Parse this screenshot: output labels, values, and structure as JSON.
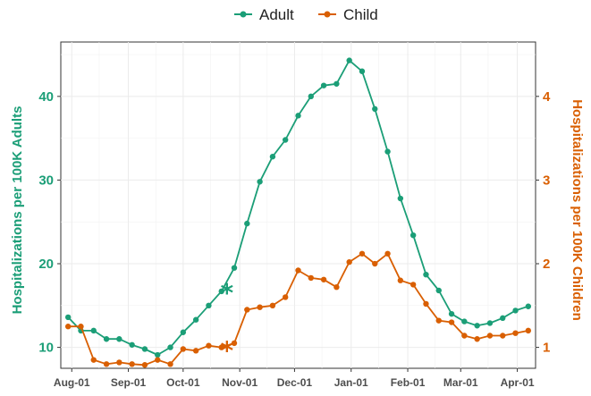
{
  "chart_data": {
    "type": "line",
    "title": "",
    "xlabel": "",
    "colors": {
      "adult": "#1b9e77",
      "child": "#d95f02"
    },
    "x_ticks": [
      {
        "label": "Aug-01",
        "date": "2023-08-01"
      },
      {
        "label": "Sep-01",
        "date": "2023-09-01"
      },
      {
        "label": "Oct-01",
        "date": "2023-10-01"
      },
      {
        "label": "Nov-01",
        "date": "2023-11-01"
      },
      {
        "label": "Dec-01",
        "date": "2023-12-01"
      },
      {
        "label": "Jan-01",
        "date": "2024-01-01"
      },
      {
        "label": "Feb-01",
        "date": "2024-02-01"
      },
      {
        "label": "Mar-01",
        "date": "2024-03-01"
      },
      {
        "label": "Apr-01",
        "date": "2024-04-01"
      }
    ],
    "y_left": {
      "label": "Hospitalizations per 100K Adults",
      "ylim": [
        7.5,
        46.5
      ],
      "ticks": [
        10,
        20,
        30,
        40
      ]
    },
    "y_right": {
      "label": "Hospitalizations per 100K Children",
      "ylim": [
        0.75,
        4.65
      ],
      "ticks": [
        1,
        2,
        3,
        4
      ]
    },
    "legend": {
      "position": "top",
      "entries": [
        "Adult",
        "Child"
      ]
    },
    "grid": true,
    "dates": [
      "2023-07-30",
      "2023-08-06",
      "2023-08-13",
      "2023-08-20",
      "2023-08-27",
      "2023-09-03",
      "2023-09-10",
      "2023-09-17",
      "2023-09-24",
      "2023-10-01",
      "2023-10-08",
      "2023-10-15",
      "2023-10-22",
      "2023-10-29",
      "2023-11-05",
      "2023-11-12",
      "2023-11-19",
      "2023-11-26",
      "2023-12-03",
      "2023-12-10",
      "2023-12-17",
      "2023-12-24",
      "2023-12-31",
      "2024-01-07",
      "2024-01-14",
      "2024-01-21",
      "2024-01-28",
      "2024-02-04",
      "2024-02-11",
      "2024-02-18",
      "2024-02-25",
      "2024-03-03",
      "2024-03-10",
      "2024-03-17",
      "2024-03-24",
      "2024-03-31",
      "2024-04-07"
    ],
    "series": [
      {
        "name": "Adult",
        "axis": "left",
        "values": [
          13.6,
          12.0,
          12.0,
          11.0,
          11.0,
          10.3,
          9.8,
          9.1,
          10.0,
          11.8,
          13.3,
          15.0,
          16.7,
          19.5,
          24.8,
          29.8,
          32.8,
          34.8,
          37.7,
          40.0,
          41.3,
          41.5,
          44.3,
          43.0,
          38.5,
          33.4,
          27.8,
          23.4,
          18.7,
          16.8,
          14.0,
          13.1,
          12.6,
          12.9,
          13.5,
          14.4,
          14.9
        ]
      },
      {
        "name": "Child",
        "axis": "right",
        "values": [
          1.25,
          1.25,
          0.85,
          0.8,
          0.82,
          0.8,
          0.79,
          0.85,
          0.8,
          0.98,
          0.96,
          1.02,
          1.0,
          1.05,
          1.45,
          1.48,
          1.5,
          1.6,
          1.92,
          1.83,
          1.81,
          1.72,
          2.02,
          2.12,
          2.0,
          2.12,
          1.8,
          1.75,
          1.52,
          1.32,
          1.3,
          1.14,
          1.1,
          1.14,
          1.14,
          1.17,
          1.2
        ]
      }
    ],
    "annotations": [
      {
        "marker": "*",
        "series": "Adult",
        "date": "2023-10-25",
        "value": 16.7
      },
      {
        "marker": "*",
        "series": "Child",
        "date": "2023-10-25",
        "value": 0.98
      }
    ]
  }
}
